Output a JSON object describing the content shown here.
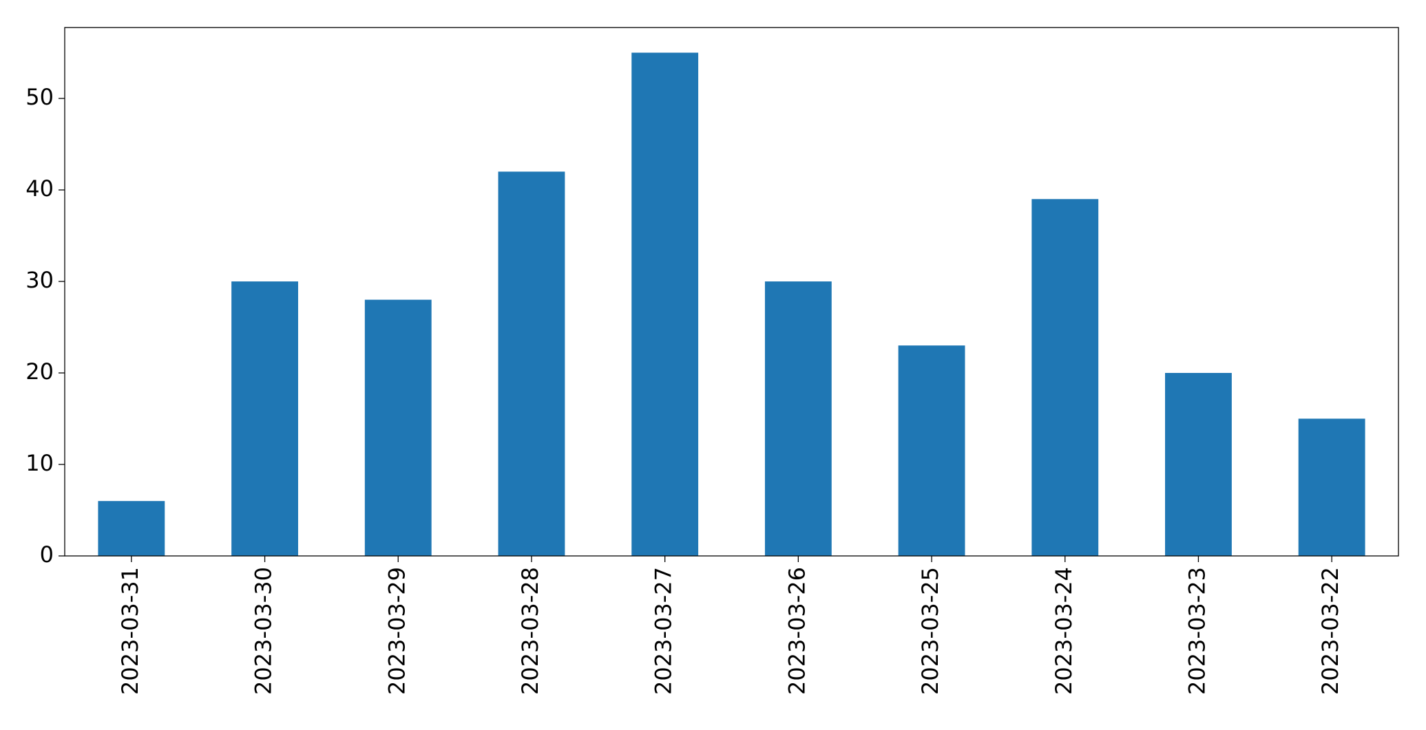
{
  "chart_data": {
    "type": "bar",
    "categories": [
      "2023-03-31",
      "2023-03-30",
      "2023-03-29",
      "2023-03-28",
      "2023-03-27",
      "2023-03-26",
      "2023-03-25",
      "2023-03-24",
      "2023-03-23",
      "2023-03-22"
    ],
    "values": [
      6,
      30,
      28,
      42,
      55,
      30,
      23,
      39,
      20,
      15
    ],
    "color": "#1f77b4",
    "ylim": [
      0,
      57.75
    ],
    "yticks": [
      0,
      10,
      20,
      30,
      40,
      50
    ],
    "grid": false
  }
}
